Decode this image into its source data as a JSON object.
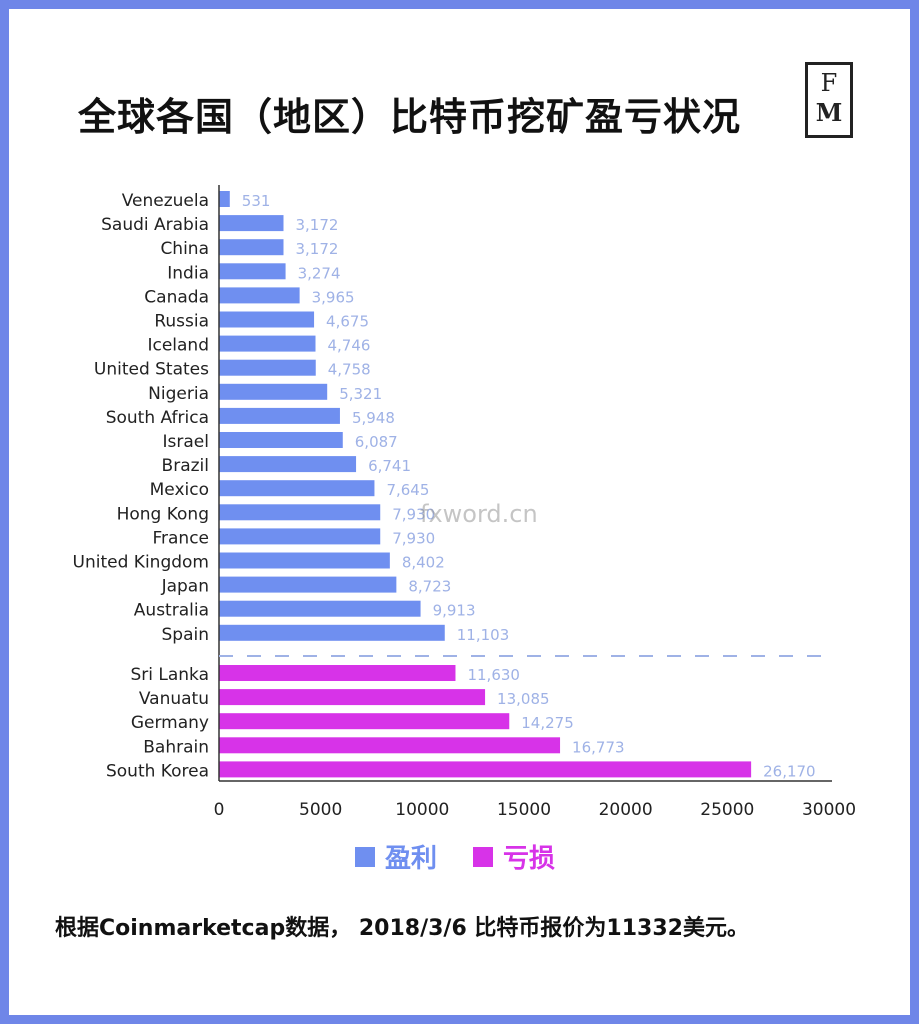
{
  "header": {
    "title": "全球各国（地区）比特币挖矿盈亏状况",
    "logo_top": "F",
    "logo_bottom": "M"
  },
  "watermark": "fxword.cn",
  "footnote": "根据Coinmarketcap数据， 2018/3/6 比特币报价为11332美元。",
  "legend": {
    "profit_label": "盈利",
    "loss_label": "亏损"
  },
  "colors": {
    "profit": "#6f8ff0",
    "loss": "#d733e8",
    "value_label": "#9fb2e6",
    "frame": "#6f86e8"
  },
  "chart_data": {
    "type": "bar",
    "orientation": "horizontal",
    "title": "全球各国（地区）比特币挖矿盈亏状况",
    "xlabel": "",
    "ylabel": "",
    "xlim": [
      0,
      30000
    ],
    "xticks": [
      0,
      5000,
      10000,
      15000,
      20000,
      25000,
      30000
    ],
    "grid": false,
    "legend_position": "bottom",
    "categories": [
      "Venezuela",
      "Saudi Arabia",
      "China",
      "India",
      "Canada",
      "Russia",
      "Iceland",
      "United States",
      "Nigeria",
      "South Africa",
      "Israel",
      "Brazil",
      "Mexico",
      "Hong Kong",
      "France",
      "United Kingdom",
      "Japan",
      "Australia",
      "Spain",
      "Sri Lanka",
      "Vanuatu",
      "Germany",
      "Bahrain",
      "South Korea"
    ],
    "values": [
      531,
      3172,
      3172,
      3274,
      3965,
      4675,
      4746,
      4758,
      5321,
      5948,
      6087,
      6741,
      7645,
      7930,
      7930,
      8402,
      8723,
      9913,
      11103,
      11630,
      13085,
      14275,
      16773,
      26170
    ],
    "value_labels": [
      "531",
      "3,172",
      "3,172",
      "3,274",
      "3,965",
      "4,675",
      "4,746",
      "4,758",
      "5,321",
      "5,948",
      "6,087",
      "6,741",
      "7,645",
      "7,930",
      "7,930",
      "8,402",
      "8,723",
      "9,913",
      "11,103",
      "11,630",
      "13,085",
      "14,275",
      "16,773",
      "26,170"
    ],
    "groups": [
      "profit",
      "profit",
      "profit",
      "profit",
      "profit",
      "profit",
      "profit",
      "profit",
      "profit",
      "profit",
      "profit",
      "profit",
      "profit",
      "profit",
      "profit",
      "profit",
      "profit",
      "profit",
      "profit",
      "loss",
      "loss",
      "loss",
      "loss",
      "loss"
    ]
  }
}
